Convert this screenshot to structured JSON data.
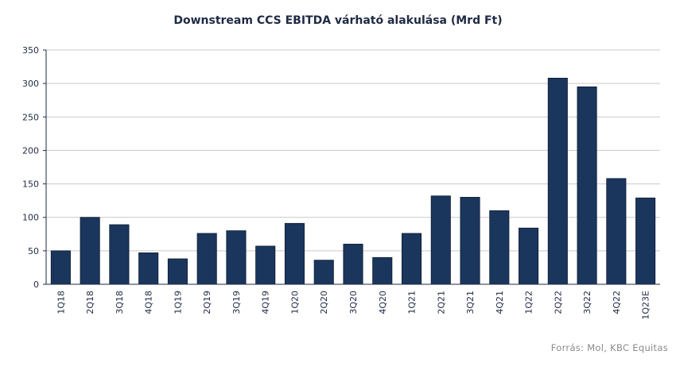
{
  "chart_data": {
    "type": "bar",
    "title": "Downstream CCS EBITDA várható alakulása (Mrd Ft)",
    "xlabel": "",
    "ylabel": "",
    "categories": [
      "1Q18",
      "2Q18",
      "3Q18",
      "4Q18",
      "1Q19",
      "2Q19",
      "3Q19",
      "4Q19",
      "1Q20",
      "2Q20",
      "3Q20",
      "4Q20",
      "1Q21",
      "2Q21",
      "3Q21",
      "4Q21",
      "1Q22",
      "2Q22",
      "3Q22",
      "4Q22",
      "1Q23E"
    ],
    "values": [
      50,
      100,
      89,
      47,
      38,
      76,
      80,
      57,
      91,
      36,
      60,
      40,
      76,
      132,
      130,
      110,
      84,
      308,
      295,
      158,
      129
    ],
    "ylim": [
      0,
      350
    ],
    "yticks": [
      0,
      50,
      100,
      150,
      200,
      250,
      300,
      350
    ],
    "grid": true,
    "legend": "none",
    "bar_color": "#1b365d"
  },
  "source": "Forrás: Mol, KBC Equitas"
}
